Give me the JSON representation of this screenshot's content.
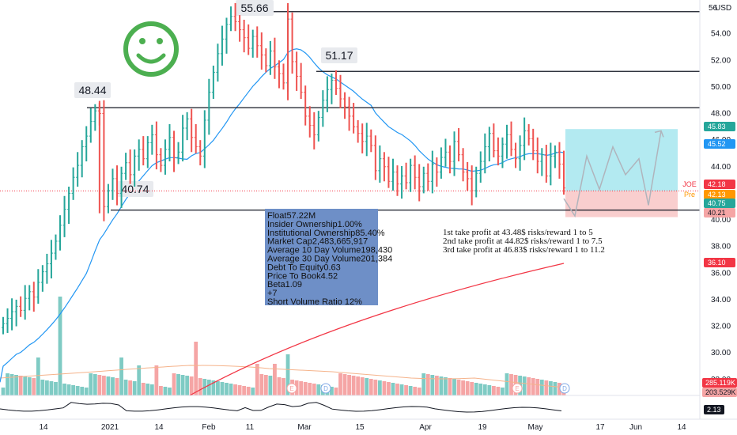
{
  "header": {
    "currency": "USD"
  },
  "chart_data": {
    "type": "candlestick",
    "price_axis": {
      "ylim": [
        29,
        56.5
      ],
      "tick_labels": [
        "28.00",
        "30.00",
        "32.00",
        "34.00",
        "36.00",
        "38.00",
        "40.00",
        "42.00",
        "44.00",
        "46.00",
        "48.00",
        "50.00",
        "52.00",
        "54.00",
        "56"
      ]
    },
    "time_axis": {
      "tick_labels": [
        "14",
        "2021",
        "14",
        "Feb",
        "11",
        "Mar",
        "15",
        "Apr",
        "19",
        "May",
        "17",
        "Jun",
        "14"
      ]
    },
    "candles": {
      "note": "Daily OHLC bars from Dec 2020 through May 2021 (values approximated from chart)",
      "close": [
        32.2,
        32.6,
        33.1,
        33.5,
        33.2,
        34.1,
        34.6,
        34.2,
        35.3,
        36.1,
        36.7,
        37.5,
        38.4,
        39.6,
        40.8,
        42.0,
        43.2,
        44.1,
        45.5,
        46.3,
        47.4,
        48.2,
        48.0,
        41.0,
        42.2,
        43.1,
        42.0,
        43.5,
        44.3,
        43.4,
        44.8,
        45.3,
        44.6,
        45.8,
        46.4,
        44.9,
        44.1,
        45.3,
        46.2,
        44.7,
        45.1,
        46.9,
        47.6,
        46.2,
        45.5,
        44.8,
        47.5,
        49.6,
        51.1,
        52.5,
        53.6,
        54.7,
        55.3,
        54.9,
        54.3,
        53.7,
        52.9,
        53.8,
        53.1,
        52.4,
        51.6,
        52.7,
        51.5,
        51.0,
        50.3,
        55.1,
        51.9,
        50.8,
        49.6,
        47.8,
        47.1,
        46.4,
        47.7,
        49.0,
        49.8,
        50.5,
        49.9,
        49.1,
        48.5,
        47.8,
        47.0,
        46.5,
        45.9,
        46.3,
        45.6,
        43.7,
        44.6,
        44.0,
        42.9,
        43.6,
        42.7,
        43.3,
        42.8,
        44.1,
        43.2,
        42.5,
        43.5,
        42.9,
        44.2,
        43.6,
        44.7,
        45.1,
        44.4,
        45.9,
        44.9,
        43.6,
        43.1,
        42.2,
        43.5,
        44.4,
        45.5,
        46.5,
        45.2,
        44.8,
        45.7,
        46.4,
        45.3,
        44.6,
        45.6,
        46.7,
        46.1,
        45.2,
        44.4,
        44.9,
        43.3,
        44.8,
        45.1,
        44.2,
        42.4
      ],
      "color_up": "#26a69a",
      "color_down": "#ef5350"
    },
    "levels": [
      {
        "value": 55.66,
        "label": "55.66"
      },
      {
        "value": 51.17,
        "label": "51.17"
      },
      {
        "value": 48.44,
        "label": "48.44"
      },
      {
        "value": 40.74,
        "label": "40.74"
      }
    ],
    "moving_averages": [
      {
        "color": "#2196f3"
      },
      {
        "color": "#f23645"
      }
    ],
    "price_tags": [
      {
        "label": "45.83",
        "color": "#26a69a"
      },
      {
        "label": "45.52",
        "color": "#2196f3"
      },
      {
        "label": "JOE",
        "value_label": "42.18",
        "color": "#f23645"
      },
      {
        "label": "Pre",
        "value_label": "42.13",
        "color": "#ff9800"
      },
      {
        "label": "40.75",
        "color": "#26a69a"
      },
      {
        "label": "40.21",
        "color": "#f5a5a5"
      },
      {
        "label": "36.10",
        "color": "#f23645"
      }
    ],
    "volume": {
      "tags": [
        {
          "label": "285.119K",
          "color": "#f23645"
        },
        {
          "label": "203.529K",
          "color": "#f5a5a5"
        }
      ],
      "event_markers": [
        "E",
        "D",
        "E",
        "D"
      ]
    },
    "indicator": {
      "value_label": "2.13"
    },
    "position_tool": {
      "entry": 42.18,
      "take_profit": 46.83,
      "stop_loss": 40.21,
      "target_color": "#a6e6ef",
      "stop_color": "#f8c5c5"
    }
  },
  "annotations": {
    "smiley_color": "#4caf50",
    "info_box": {
      "lines": [
        "Float57.22M",
        "Insider Ownership1.00%",
        "Institutional Ownership85.40%",
        "Market Cap2,483,665,917",
        "Average 10 Day Volume198,430",
        "Average 30 Day Volume201,384",
        "Debt To Equity0.63",
        "Price To Book4.52",
        "Beta1.09",
        "+7",
        "Short Volume Ratio 12%"
      ],
      "color": "#6e8fc7"
    },
    "take_profit_notes": [
      "1st take profit at 43.48$ risks/reward 1 to 5",
      "2nd take profit at 44.82$ risks/reward 1 to 7.5",
      "3rd take profit at 46.83$ risks/reward 1 to 11.2"
    ]
  }
}
